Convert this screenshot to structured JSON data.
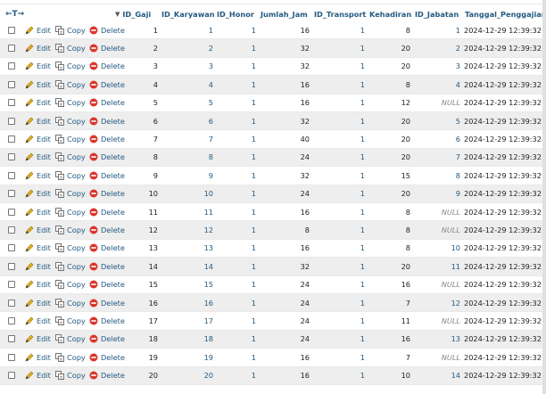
{
  "header": {
    "nav_arrows": "←T→",
    "sort_arrow": "▼",
    "columns": [
      "ID_Gaji",
      "ID_Karyawan",
      "ID_Honor",
      "Jumlah_Jam",
      "ID_Transport",
      "Kehadiran",
      "ID_Jabatan",
      "Tanggal_Penggajian"
    ]
  },
  "actions": {
    "edit": "Edit",
    "copy": "Copy",
    "delete": "Delete"
  },
  "colors": {
    "link": "#235a81",
    "row_even": "#eeeeee",
    "row_odd": "#ffffff",
    "delete_icon": "#d9362b",
    "edit_icon": "#e2b022"
  },
  "rows": [
    {
      "id_gaji": "1",
      "id_karyawan": "1",
      "id_honor": "1",
      "jumlah_jam": "16",
      "id_transport": "1",
      "kehadiran": "8",
      "id_jabatan": "1",
      "tanggal": "2024-12-29 12:39:32"
    },
    {
      "id_gaji": "2",
      "id_karyawan": "2",
      "id_honor": "1",
      "jumlah_jam": "32",
      "id_transport": "1",
      "kehadiran": "20",
      "id_jabatan": "2",
      "tanggal": "2024-12-29 12:39:32"
    },
    {
      "id_gaji": "3",
      "id_karyawan": "3",
      "id_honor": "1",
      "jumlah_jam": "32",
      "id_transport": "1",
      "kehadiran": "20",
      "id_jabatan": "3",
      "tanggal": "2024-12-29 12:39:32"
    },
    {
      "id_gaji": "4",
      "id_karyawan": "4",
      "id_honor": "1",
      "jumlah_jam": "16",
      "id_transport": "1",
      "kehadiran": "8",
      "id_jabatan": "4",
      "tanggal": "2024-12-29 12:39:32"
    },
    {
      "id_gaji": "5",
      "id_karyawan": "5",
      "id_honor": "1",
      "jumlah_jam": "16",
      "id_transport": "1",
      "kehadiran": "12",
      "id_jabatan": "NULL",
      "tanggal": "2024-12-29 12:39:32"
    },
    {
      "id_gaji": "6",
      "id_karyawan": "6",
      "id_honor": "1",
      "jumlah_jam": "32",
      "id_transport": "1",
      "kehadiran": "20",
      "id_jabatan": "5",
      "tanggal": "2024-12-29 12:39:32"
    },
    {
      "id_gaji": "7",
      "id_karyawan": "7",
      "id_honor": "1",
      "jumlah_jam": "40",
      "id_transport": "1",
      "kehadiran": "20",
      "id_jabatan": "6",
      "tanggal": "2024-12-29 12:39:32"
    },
    {
      "id_gaji": "8",
      "id_karyawan": "8",
      "id_honor": "1",
      "jumlah_jam": "24",
      "id_transport": "1",
      "kehadiran": "20",
      "id_jabatan": "7",
      "tanggal": "2024-12-29 12:39:32"
    },
    {
      "id_gaji": "9",
      "id_karyawan": "9",
      "id_honor": "1",
      "jumlah_jam": "32",
      "id_transport": "1",
      "kehadiran": "15",
      "id_jabatan": "8",
      "tanggal": "2024-12-29 12:39:32"
    },
    {
      "id_gaji": "10",
      "id_karyawan": "10",
      "id_honor": "1",
      "jumlah_jam": "24",
      "id_transport": "1",
      "kehadiran": "20",
      "id_jabatan": "9",
      "tanggal": "2024-12-29 12:39:32"
    },
    {
      "id_gaji": "11",
      "id_karyawan": "11",
      "id_honor": "1",
      "jumlah_jam": "16",
      "id_transport": "1",
      "kehadiran": "8",
      "id_jabatan": "NULL",
      "tanggal": "2024-12-29 12:39:32"
    },
    {
      "id_gaji": "12",
      "id_karyawan": "12",
      "id_honor": "1",
      "jumlah_jam": "8",
      "id_transport": "1",
      "kehadiran": "8",
      "id_jabatan": "NULL",
      "tanggal": "2024-12-29 12:39:32"
    },
    {
      "id_gaji": "13",
      "id_karyawan": "13",
      "id_honor": "1",
      "jumlah_jam": "16",
      "id_transport": "1",
      "kehadiran": "8",
      "id_jabatan": "10",
      "tanggal": "2024-12-29 12:39:32"
    },
    {
      "id_gaji": "14",
      "id_karyawan": "14",
      "id_honor": "1",
      "jumlah_jam": "32",
      "id_transport": "1",
      "kehadiran": "20",
      "id_jabatan": "11",
      "tanggal": "2024-12-29 12:39:32"
    },
    {
      "id_gaji": "15",
      "id_karyawan": "15",
      "id_honor": "1",
      "jumlah_jam": "24",
      "id_transport": "1",
      "kehadiran": "16",
      "id_jabatan": "NULL",
      "tanggal": "2024-12-29 12:39:32"
    },
    {
      "id_gaji": "16",
      "id_karyawan": "16",
      "id_honor": "1",
      "jumlah_jam": "24",
      "id_transport": "1",
      "kehadiran": "7",
      "id_jabatan": "12",
      "tanggal": "2024-12-29 12:39:32"
    },
    {
      "id_gaji": "17",
      "id_karyawan": "17",
      "id_honor": "1",
      "jumlah_jam": "24",
      "id_transport": "1",
      "kehadiran": "11",
      "id_jabatan": "NULL",
      "tanggal": "2024-12-29 12:39:32"
    },
    {
      "id_gaji": "18",
      "id_karyawan": "18",
      "id_honor": "1",
      "jumlah_jam": "24",
      "id_transport": "1",
      "kehadiran": "16",
      "id_jabatan": "13",
      "tanggal": "2024-12-29 12:39:32"
    },
    {
      "id_gaji": "19",
      "id_karyawan": "19",
      "id_honor": "1",
      "jumlah_jam": "16",
      "id_transport": "1",
      "kehadiran": "7",
      "id_jabatan": "NULL",
      "tanggal": "2024-12-29 12:39:32"
    },
    {
      "id_gaji": "20",
      "id_karyawan": "20",
      "id_honor": "1",
      "jumlah_jam": "16",
      "id_transport": "1",
      "kehadiran": "10",
      "id_jabatan": "14",
      "tanggal": "2024-12-29 12:39:32"
    }
  ]
}
